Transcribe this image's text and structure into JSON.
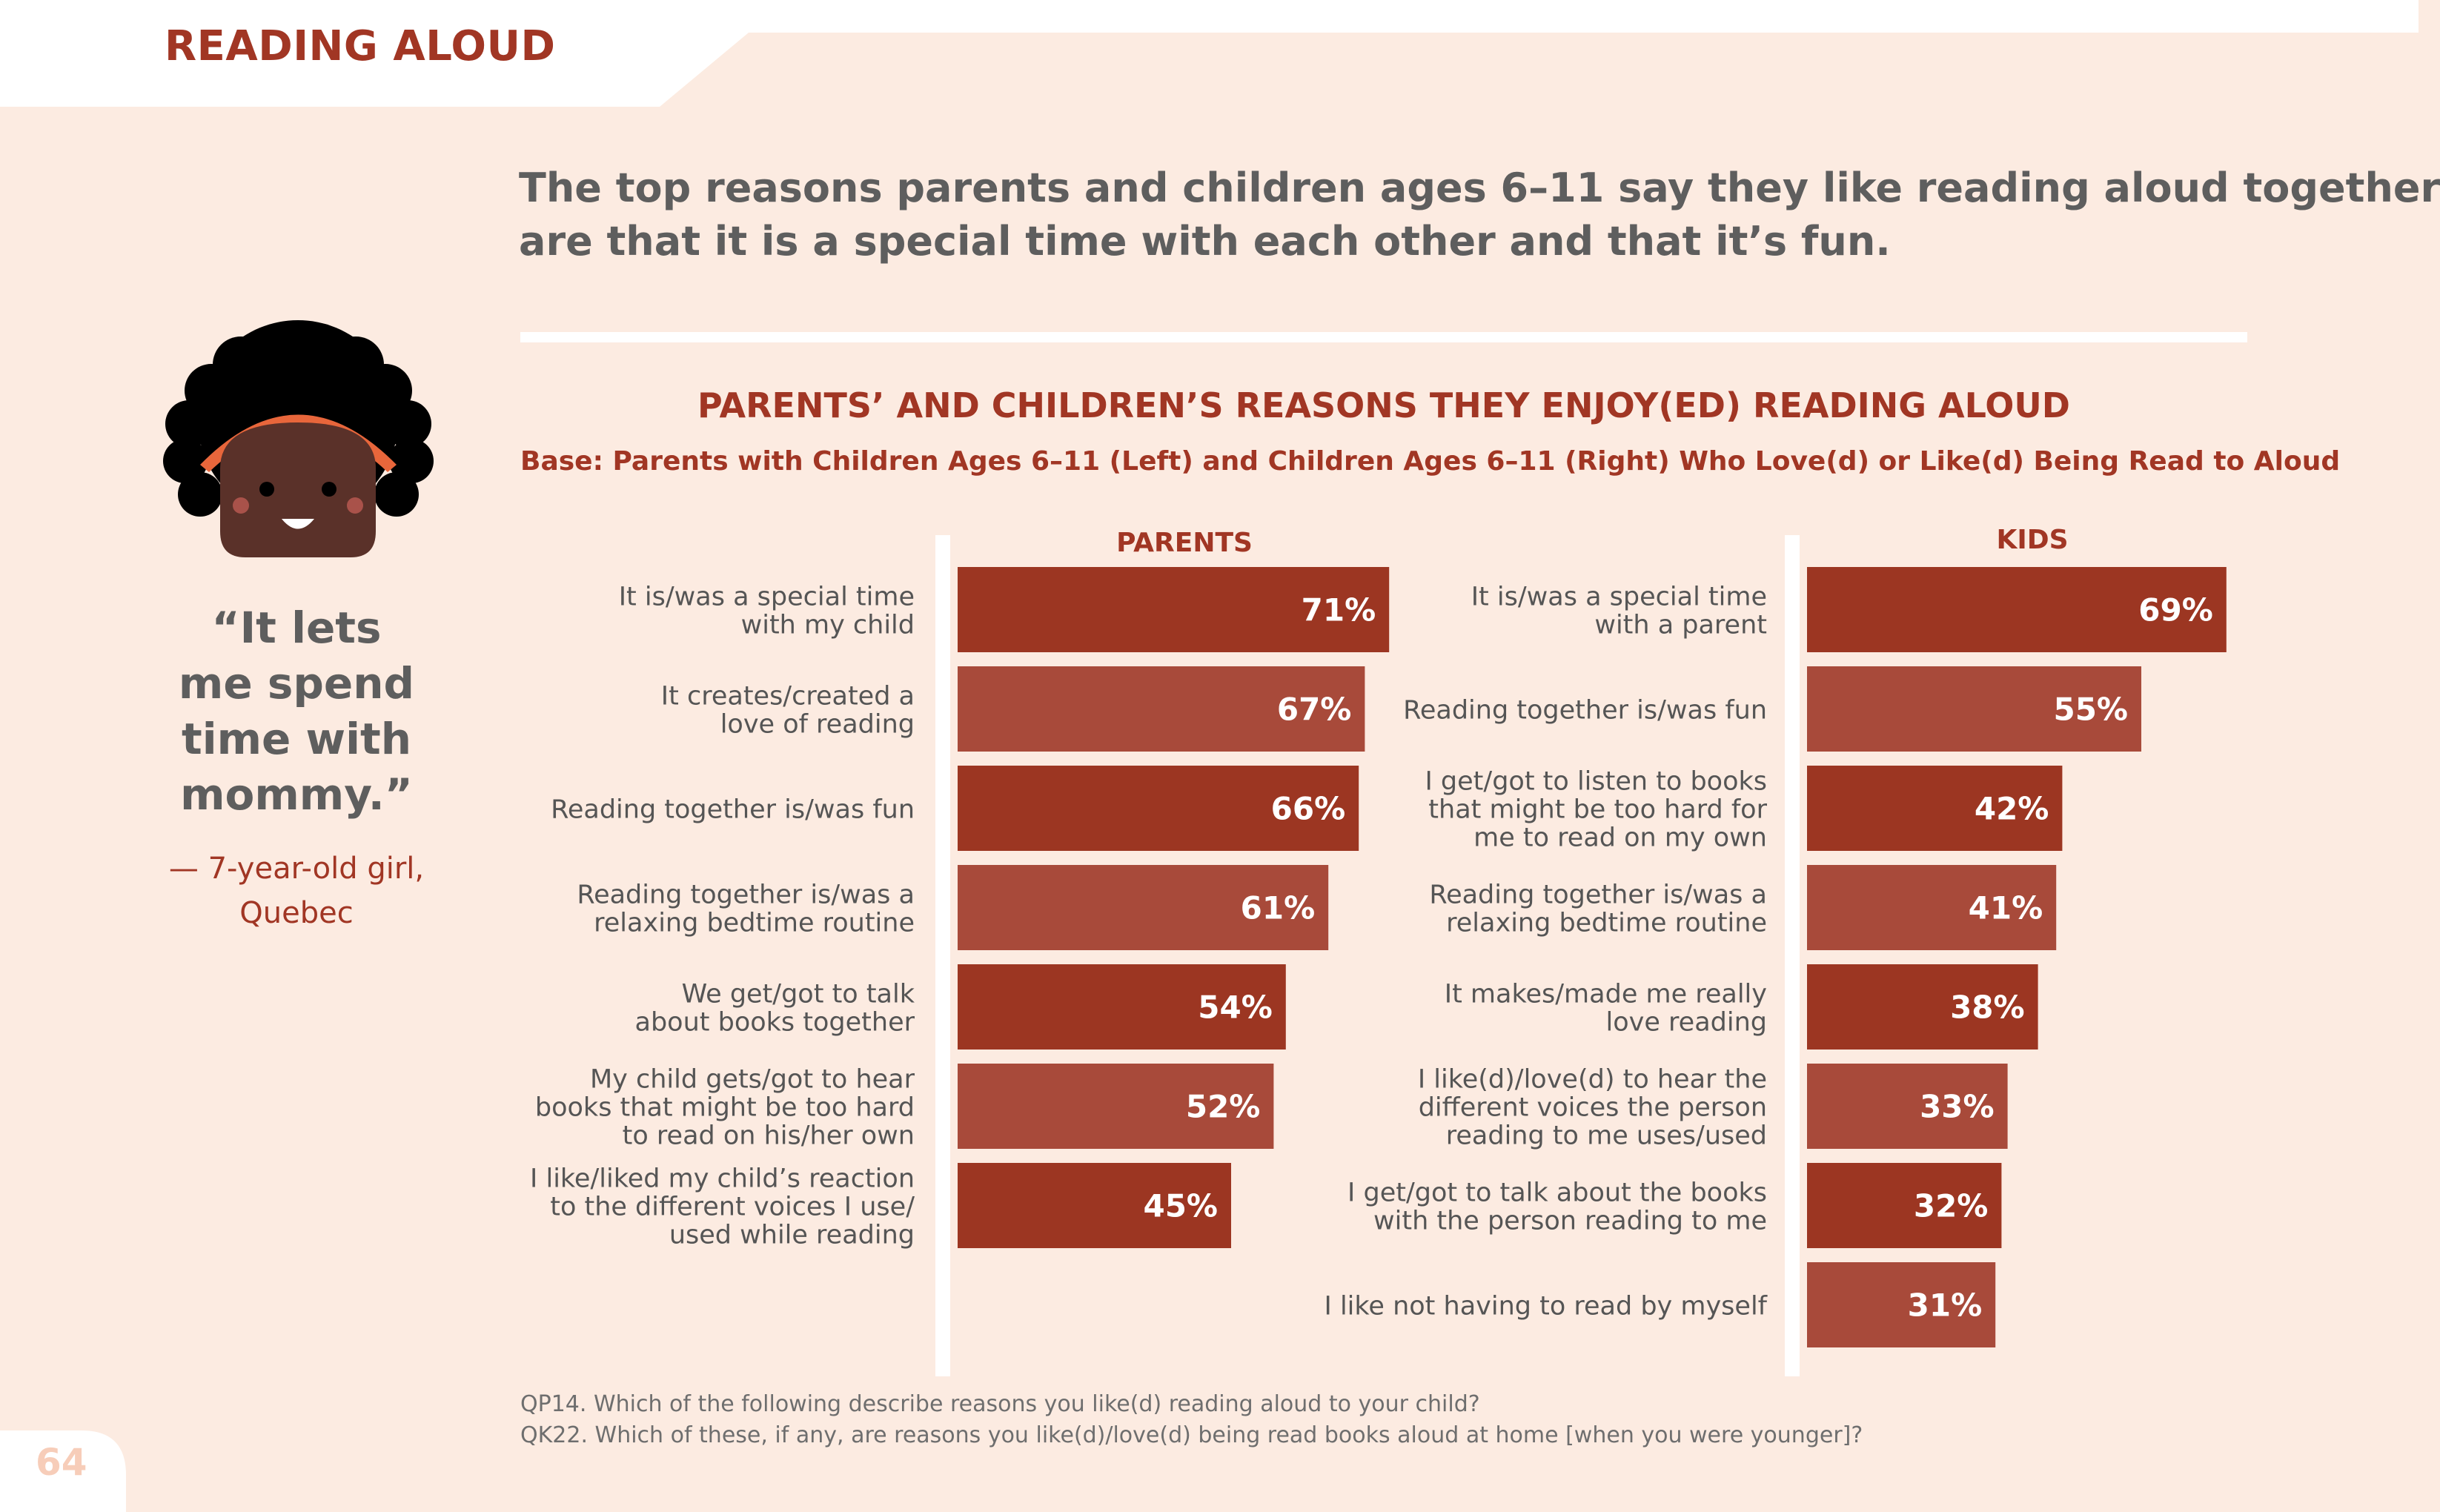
{
  "header": {
    "section_title": "READING ALOUD",
    "page_number": "64"
  },
  "headline": {
    "line1": "The top reasons parents and children ages 6–11 say they like reading aloud together",
    "line2": "are that it is a special time with each other and that it’s fun."
  },
  "quote": {
    "lines": [
      "“It lets",
      "me spend",
      "time with",
      "mommy.”"
    ],
    "attribution_line1": "— 7-year-old girl,",
    "attribution_line2": "Quebec"
  },
  "colors": {
    "background": "#fcebe1",
    "accent": "#a13624",
    "bar_dark": "#9c3622",
    "bar_light": "#a84a3a",
    "text_gray": "#5e5e5e"
  },
  "chart_data": {
    "type": "bar",
    "orientation": "horizontal",
    "title": "PARENTS’ AND CHILDREN’S REASONS THEY ENJOY(ED) READING ALOUD",
    "subtitle": "Base: Parents with Children Ages 6–11 (Left) and Children Ages 6–11 (Right) Who Love(d) or Like(d) Being Read to Aloud",
    "xlim": [
      0,
      100
    ],
    "unit": "%",
    "panels": [
      {
        "name": "PARENTS",
        "categories": [
          [
            "It is/was a special time",
            "with my child"
          ],
          [
            "It creates/created a",
            "love of reading"
          ],
          [
            "Reading together is/was fun"
          ],
          [
            "Reading together is/was a",
            "relaxing bedtime routine"
          ],
          [
            "We get/got to talk",
            "about books together"
          ],
          [
            "My child gets/got to hear",
            "books that might be too hard",
            "to read on his/her own"
          ],
          [
            "I like/liked my child’s reaction",
            "to the different voices I use/",
            "used while reading"
          ]
        ],
        "values": [
          71,
          67,
          66,
          61,
          54,
          52,
          45
        ]
      },
      {
        "name": "KIDS",
        "categories": [
          [
            "It is/was a special time",
            "with a parent"
          ],
          [
            "Reading together is/was fun"
          ],
          [
            "I get/got to listen to books",
            "that might be too hard for",
            "me to read on my own"
          ],
          [
            "Reading together is/was a",
            "relaxing bedtime routine"
          ],
          [
            "It makes/made me really",
            "love reading"
          ],
          [
            "I like(d)/love(d) to hear the",
            "different voices the person",
            "reading to me uses/used"
          ],
          [
            "I get/got to talk about the books",
            "with the person reading to me"
          ],
          [
            "I like not having to read by myself"
          ]
        ],
        "values": [
          69,
          55,
          42,
          41,
          38,
          33,
          32,
          31
        ]
      }
    ]
  },
  "footnotes": {
    "qp14": "QP14. Which of the following describe reasons you like(d) reading aloud to your child?",
    "qk22": "QK22. Which of these, if any, are reasons you like(d)/love(d) being read books aloud at home [when you were younger]?"
  }
}
